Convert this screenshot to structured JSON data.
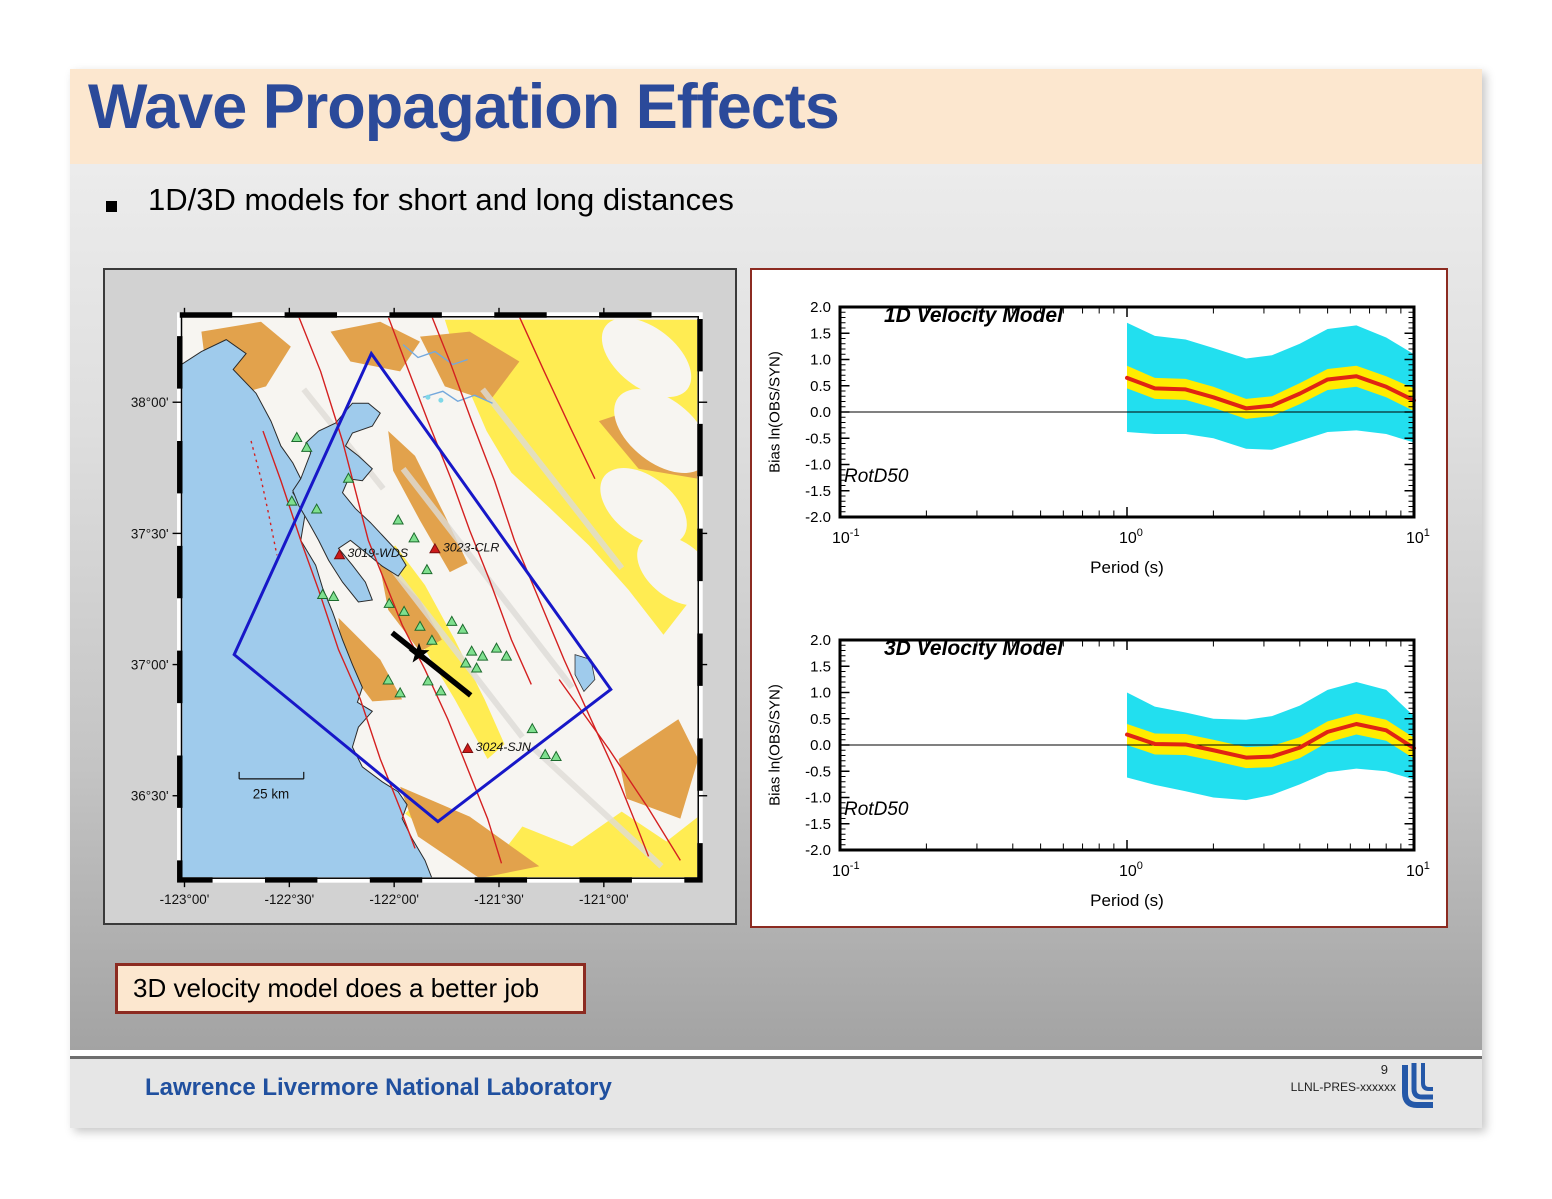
{
  "header": {
    "title": "Wave Propagation Effects"
  },
  "bullet": {
    "text": "1D/3D models for short and long distances"
  },
  "map": {
    "lat_labels": [
      "38°00'",
      "37°30'",
      "37°00'",
      "36°30'"
    ],
    "lon_labels": [
      "-123°00'",
      "-122°30'",
      "-122°00'",
      "-121°30'",
      "-121°00'"
    ],
    "stations": [
      {
        "label": "3019-WDS"
      },
      {
        "label": "3023-CLR"
      },
      {
        "label": "3024-SJN"
      }
    ],
    "scale_label": "25 km"
  },
  "callout": {
    "text": "3D velocity model does a better job"
  },
  "footer": {
    "org": "Lawrence Livermore National Laboratory"
  },
  "page": {
    "number": "9",
    "pres_id": "LLNL-PRES-xxxxxx"
  },
  "colors": {
    "accent_blue": "#2B4A9A",
    "panel_border_red": "#8C2B21",
    "band_outer": "#22DFEF",
    "band_inner": "#FFEC00",
    "median_line": "#E02413"
  },
  "chart_data": [
    {
      "type": "area",
      "title": "1D Velocity Model",
      "annotation": "RotD50",
      "xlabel": "Period (s)",
      "ylabel": "Bias ln(OBS/SYN)",
      "xscale": "log",
      "xlim": [
        0.1,
        10
      ],
      "ylim": [
        -2,
        2
      ],
      "grid": false,
      "yticks": [
        "2.0",
        "1.5",
        "1.0",
        "0.5",
        "0.0",
        "-0.5",
        "-1.0",
        "-1.5",
        "-2.0"
      ],
      "xticks": [
        {
          "base": "10",
          "exp": "-1"
        },
        {
          "base": "10",
          "exp": "0"
        },
        {
          "base": "10",
          "exp": "1"
        }
      ],
      "x": [
        1.0,
        1.25,
        1.6,
        2.0,
        2.6,
        3.2,
        4.0,
        5.0,
        6.3,
        8.0,
        10.0
      ],
      "series": [
        {
          "name": "median",
          "values": [
            0.65,
            0.45,
            0.43,
            0.28,
            0.07,
            0.12,
            0.35,
            0.62,
            0.68,
            0.48,
            0.22
          ]
        },
        {
          "name": "inner_band_hi",
          "values": [
            0.88,
            0.65,
            0.63,
            0.48,
            0.25,
            0.3,
            0.55,
            0.82,
            0.88,
            0.68,
            0.45
          ]
        },
        {
          "name": "inner_band_lo",
          "values": [
            0.45,
            0.25,
            0.23,
            0.08,
            -0.13,
            -0.08,
            0.15,
            0.42,
            0.48,
            0.28,
            0.02
          ]
        },
        {
          "name": "outer_band_hi",
          "values": [
            1.7,
            1.45,
            1.38,
            1.22,
            1.02,
            1.08,
            1.3,
            1.58,
            1.65,
            1.42,
            1.1
          ]
        },
        {
          "name": "outer_band_lo",
          "values": [
            -0.38,
            -0.42,
            -0.42,
            -0.5,
            -0.7,
            -0.72,
            -0.55,
            -0.38,
            -0.35,
            -0.42,
            -0.58
          ]
        }
      ]
    },
    {
      "type": "area",
      "title": "3D Velocity Model",
      "annotation": "RotD50",
      "xlabel": "Period (s)",
      "ylabel": "Bias ln(OBS/SYN)",
      "xscale": "log",
      "xlim": [
        0.1,
        10
      ],
      "ylim": [
        -2,
        2
      ],
      "grid": false,
      "yticks": [
        "2.0",
        "1.5",
        "1.0",
        "0.5",
        "0.0",
        "-0.5",
        "-1.0",
        "-1.5",
        "-2.0"
      ],
      "xticks": [
        {
          "base": "10",
          "exp": "-1"
        },
        {
          "base": "10",
          "exp": "0"
        },
        {
          "base": "10",
          "exp": "1"
        }
      ],
      "x": [
        1.0,
        1.25,
        1.6,
        2.0,
        2.6,
        3.2,
        4.0,
        5.0,
        6.3,
        8.0,
        10.0
      ],
      "series": [
        {
          "name": "median",
          "values": [
            0.2,
            0.02,
            0.01,
            -0.1,
            -0.24,
            -0.22,
            -0.05,
            0.25,
            0.4,
            0.28,
            -0.06
          ]
        },
        {
          "name": "inner_band_hi",
          "values": [
            0.4,
            0.22,
            0.21,
            0.1,
            -0.04,
            -0.02,
            0.15,
            0.45,
            0.6,
            0.48,
            0.14
          ]
        },
        {
          "name": "inner_band_lo",
          "values": [
            0.0,
            -0.18,
            -0.19,
            -0.3,
            -0.44,
            -0.42,
            -0.25,
            0.05,
            0.2,
            0.08,
            -0.26
          ]
        },
        {
          "name": "outer_band_hi",
          "values": [
            1.0,
            0.73,
            0.62,
            0.5,
            0.48,
            0.55,
            0.75,
            1.05,
            1.2,
            1.05,
            0.55
          ]
        },
        {
          "name": "outer_band_lo",
          "values": [
            -0.62,
            -0.76,
            -0.88,
            -1.0,
            -1.05,
            -0.95,
            -0.75,
            -0.52,
            -0.45,
            -0.5,
            -0.66
          ]
        }
      ]
    }
  ]
}
